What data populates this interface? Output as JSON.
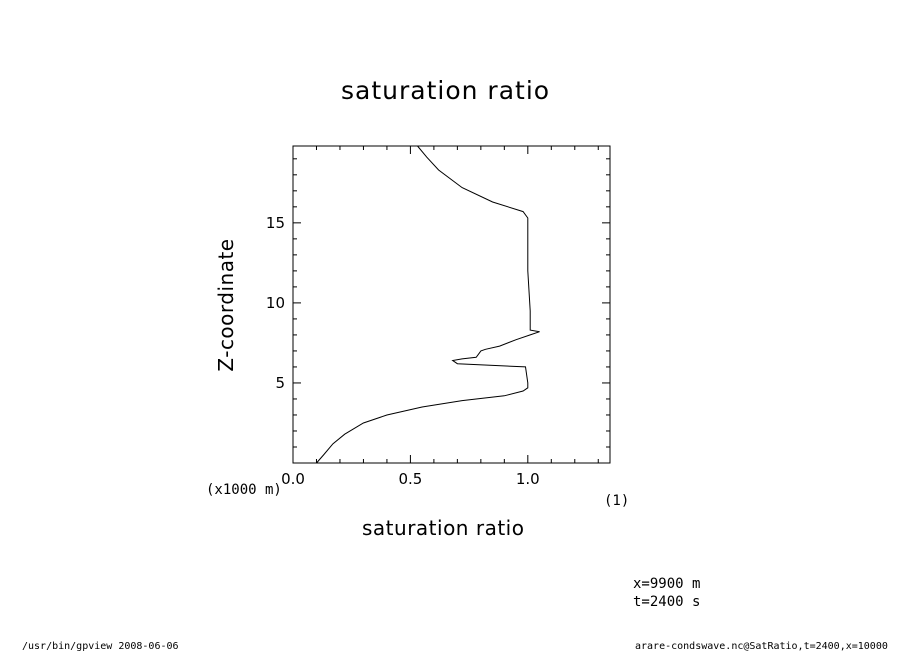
{
  "chart_data": {
    "type": "line",
    "title": "saturation ratio",
    "xlabel": "saturation ratio",
    "ylabel": "Z-coordinate",
    "x_unit": "(1)",
    "y_unit": "(x1000 m)",
    "xlim": [
      0.0,
      1.35
    ],
    "ylim": [
      0.0,
      19.8
    ],
    "x_ticks": [
      "0.0",
      "0.5",
      "1.0"
    ],
    "x_tick_values": [
      0.0,
      0.5,
      1.0
    ],
    "y_ticks": [
      "5",
      "10",
      "15"
    ],
    "y_tick_values": [
      5,
      10,
      15
    ],
    "grid": false,
    "series": [
      {
        "x": [
          0.1,
          0.13,
          0.17,
          0.22,
          0.3,
          0.4,
          0.55,
          0.72,
          0.9,
          0.98,
          1.0,
          1.0,
          0.99,
          0.7,
          0.68,
          0.72,
          0.78,
          0.8,
          0.82,
          0.88,
          0.95,
          1.01,
          1.05,
          1.01,
          1.01,
          1.0,
          1.0,
          0.98,
          0.85,
          0.72,
          0.62,
          0.57,
          0.53
        ],
        "y": [
          0.0,
          0.5,
          1.2,
          1.8,
          2.5,
          3.0,
          3.5,
          3.9,
          4.2,
          4.5,
          4.7,
          5.0,
          6.0,
          6.2,
          6.4,
          6.5,
          6.6,
          7.0,
          7.1,
          7.3,
          7.7,
          8.0,
          8.2,
          8.3,
          9.5,
          12.0,
          15.3,
          15.7,
          16.3,
          17.2,
          18.3,
          19.1,
          19.8
        ]
      }
    ]
  },
  "annotations": {
    "coord_x": "x=9900  m",
    "coord_t": "t=2400  s",
    "footer_left": "/usr/bin/gpview   2008-06-06",
    "footer_right": "arare-condswave.nc@SatRatio,t=2400,x=10000"
  }
}
